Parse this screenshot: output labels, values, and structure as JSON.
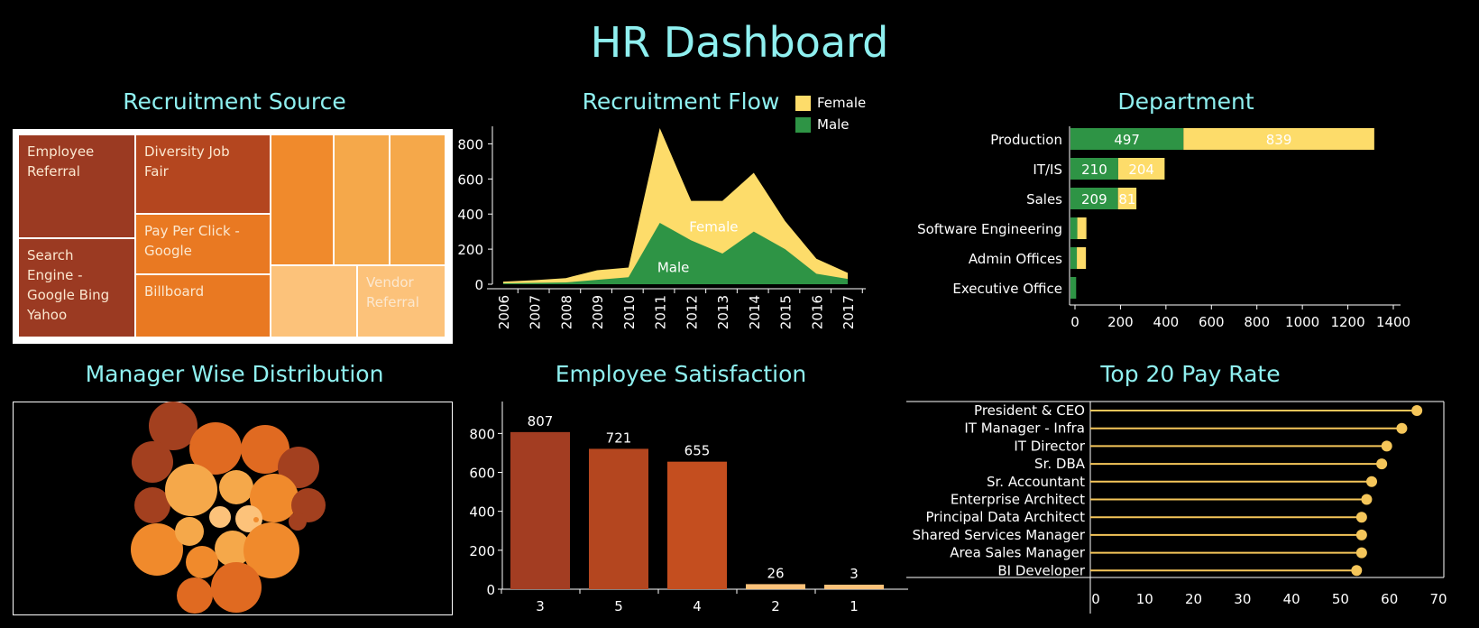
{
  "dashboard_title": "HR Dashboard",
  "panels": {
    "recruitment_source": "Recruitment Source",
    "recruitment_flow": "Recruitment Flow",
    "department": "Department",
    "manager_distribution": "Manager Wise Distribution",
    "employee_satisfaction": "Employee Satisfaction",
    "top_pay": "Top 20 Pay Rate"
  },
  "chart_data": [
    {
      "type": "treemap",
      "title": "Recruitment Source",
      "labels": [
        "Employee Referral",
        "Diversity Job Fair",
        "Pay Per Click - Google",
        "Search Engine - Google Bing Yahoo",
        "Billboard",
        "Vendor Referral"
      ],
      "colors": [
        "#9b3a22",
        "#b4461f",
        "#e97922",
        "#f08a2c",
        "#f5a84a",
        "#fcc27a"
      ]
    },
    {
      "type": "area",
      "title": "Recruitment Flow",
      "x": [
        "2006",
        "2007",
        "2008",
        "2009",
        "2010",
        "2011",
        "2012",
        "2013",
        "2014",
        "2015",
        "2016",
        "2017"
      ],
      "ylim": [
        0,
        900
      ],
      "yticks": [
        0,
        200,
        400,
        600,
        800
      ],
      "series": [
        {
          "name": "Male",
          "color": "#2e9445",
          "values": [
            5,
            8,
            10,
            25,
            40,
            350,
            250,
            175,
            300,
            200,
            60,
            30
          ]
        },
        {
          "name": "Female",
          "color": "#fddc6a",
          "values": [
            10,
            15,
            25,
            55,
            55,
            540,
            225,
            300,
            335,
            160,
            85,
            35
          ]
        }
      ],
      "legend": [
        "Female",
        "Male"
      ],
      "area_labels": {
        "female": "Female",
        "male": "Male"
      }
    },
    {
      "type": "bar",
      "orientation": "horizontal",
      "stacked": true,
      "title": "Department",
      "categories": [
        "Production",
        "IT/IS",
        "Sales",
        "Software Engineering",
        "Admin Offices",
        "Executive Office"
      ],
      "series": [
        {
          "name": "Male",
          "color": "#2e9445",
          "values": [
            497,
            210,
            209,
            30,
            28,
            25
          ]
        },
        {
          "name": "Female",
          "color": "#fddc6a",
          "values": [
            839,
            204,
            81,
            40,
            40,
            0
          ]
        }
      ],
      "data_labels": [
        [
          "497",
          "839"
        ],
        [
          "210",
          "204"
        ],
        [
          "209",
          "81"
        ],
        [
          "",
          ""
        ],
        [
          "",
          ""
        ],
        [
          "",
          ""
        ]
      ],
      "xlim": [
        0,
        1400
      ],
      "xticks": [
        "0",
        "200",
        "400",
        "600",
        "800",
        "1000",
        "1200",
        "1400"
      ]
    },
    {
      "type": "bubble",
      "title": "Manager Wise Distribution",
      "colors": [
        "#a3401f",
        "#c4501f",
        "#e06a21",
        "#f08a2c",
        "#f5a84a",
        "#fcc27a"
      ]
    },
    {
      "type": "bar",
      "title": "Employee Satisfaction",
      "categories": [
        "3",
        "5",
        "4",
        "2",
        "1"
      ],
      "values": [
        807,
        721,
        655,
        26,
        3
      ],
      "colors": [
        "#a33d22",
        "#b4461f",
        "#c44e1f",
        "#fcc27a",
        "#fcc27a"
      ],
      "ylim": [
        0,
        950
      ],
      "yticks": [
        "0",
        "200",
        "400",
        "600",
        "800"
      ]
    },
    {
      "type": "lollipop",
      "title": "Top 20 Pay Rate",
      "categories": [
        "President & CEO",
        "IT Manager - Infra",
        "IT Director",
        "Sr. DBA",
        "Sr. Accountant",
        "Enterprise Architect",
        "Principal Data Architect",
        "Shared Services Manager",
        "Area Sales Manager",
        "BI Developer"
      ],
      "values": [
        65,
        62,
        59,
        58,
        56,
        55,
        54,
        54,
        54,
        53
      ],
      "color": "#f5c65a",
      "xlim": [
        0,
        70
      ],
      "xticks": [
        "0",
        "10",
        "20",
        "30",
        "40",
        "50",
        "60",
        "70"
      ]
    }
  ]
}
